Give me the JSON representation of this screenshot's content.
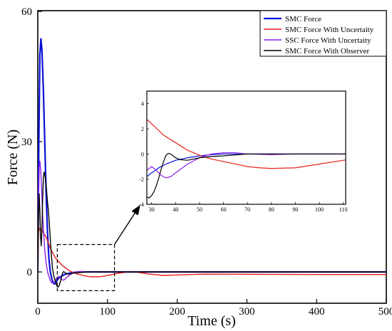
{
  "chart_data": {
    "type": "line",
    "xlabel": "Time (s)",
    "ylabel": "Force (N)",
    "xlim": [
      0,
      500
    ],
    "ylim": [
      -4,
      60
    ],
    "xticks": [
      0,
      100,
      200,
      300,
      400,
      500
    ],
    "yticks": [
      0,
      30,
      60
    ],
    "grid": false,
    "legend_position": "top-right",
    "series": [
      {
        "name": "SMC Force",
        "color": "#0a10d8",
        "x": [
          0,
          1.5,
          3,
          4.5,
          6,
          8,
          10,
          12,
          14,
          16,
          18,
          20,
          22,
          24,
          26,
          28,
          30,
          33,
          36,
          40,
          45,
          50,
          55,
          60,
          70,
          80,
          100,
          150,
          200,
          300,
          400,
          500
        ],
        "y": [
          0,
          30,
          50,
          53.7,
          51,
          42,
          30,
          18,
          9,
          3,
          0,
          -1.5,
          -2.5,
          -2.8,
          -2.5,
          -1.8,
          -1.5,
          -1.1,
          -0.8,
          -0.5,
          -0.3,
          -0.15,
          -0.05,
          0,
          0,
          0,
          0,
          0,
          0,
          0,
          0,
          0
        ]
      },
      {
        "name": "SMC Force With Uncertaity",
        "color": "#e8201a",
        "x": [
          0,
          1,
          2,
          4,
          6,
          8,
          10,
          12,
          14,
          16,
          18,
          20,
          25,
          30,
          35,
          40,
          45,
          50,
          55,
          60,
          65,
          70,
          75,
          80,
          90,
          100,
          110,
          120,
          130,
          140,
          160,
          180,
          200,
          240,
          300,
          400,
          500
        ],
        "y": [
          0,
          9,
          10,
          10,
          9.5,
          9,
          8.5,
          8,
          7.2,
          6.3,
          5.5,
          4.8,
          3.3,
          2.4,
          1.5,
          0.9,
          0.3,
          -0.1,
          -0.4,
          -0.6,
          -0.8,
          -1.0,
          -1.1,
          -1.15,
          -1.1,
          -0.8,
          -0.5,
          -0.2,
          0,
          0,
          -0.5,
          -0.8,
          -0.7,
          -0.5,
          -0.55,
          -0.6,
          -0.6
        ]
      },
      {
        "name": "SSC Force With Uncertaity",
        "color": "#8a1ee6",
        "x": [
          0,
          1,
          2,
          3,
          4,
          5,
          6,
          7,
          8,
          10,
          12,
          14,
          16,
          18,
          20,
          22,
          24,
          26,
          28,
          30,
          32,
          34,
          36,
          38,
          40,
          45,
          50,
          55,
          60,
          65,
          70,
          80,
          90,
          100,
          150,
          200,
          300,
          400,
          500
        ],
        "y": [
          0,
          15,
          24,
          25.5,
          24,
          21,
          17,
          13,
          10,
          5,
          2,
          0,
          -1,
          -2,
          -2.5,
          -2.5,
          -2.3,
          -1.7,
          -1.3,
          -1.0,
          -1.3,
          -1.7,
          -1.9,
          -1.8,
          -1.5,
          -0.8,
          -0.3,
          0,
          0.1,
          0.1,
          0,
          -0.05,
          0,
          0,
          0,
          0,
          0,
          0,
          0
        ]
      },
      {
        "name": "SMC Force With Observer",
        "color": "#000000",
        "x": [
          0,
          1,
          2,
          3,
          4,
          5,
          6,
          7,
          8,
          9,
          10,
          11,
          12,
          13,
          14,
          15,
          16,
          17,
          18,
          19,
          20,
          21,
          22,
          23,
          24,
          25,
          26,
          27,
          28,
          29,
          30,
          31,
          32,
          33,
          34,
          35,
          36,
          37,
          38,
          40,
          42,
          45,
          50,
          55,
          60,
          70,
          100,
          150,
          200,
          300,
          400,
          500
        ],
        "y": [
          0,
          12,
          18,
          14,
          8,
          6,
          10,
          17,
          21.5,
          23,
          22.5,
          21.5,
          20,
          18,
          16,
          14.5,
          12.5,
          10,
          7.5,
          5,
          3,
          1,
          0,
          -1,
          -1.5,
          -2,
          -2.5,
          -3,
          -3.4,
          -3.5,
          -3.3,
          -3.0,
          -2.5,
          -1.9,
          -1.2,
          -0.6,
          -0.1,
          0.05,
          0,
          -0.3,
          -0.45,
          -0.5,
          -0.3,
          -0.2,
          -0.15,
          0,
          0,
          0,
          0,
          0,
          0,
          0
        ]
      }
    ],
    "inset": {
      "xlim": [
        28,
        111
      ],
      "ylim": [
        -4,
        5
      ],
      "xticks": [
        30,
        40,
        50,
        60,
        70,
        80,
        90,
        100,
        110
      ],
      "yticks": [
        -4,
        -2,
        0,
        2,
        4
      ],
      "zoom_region": {
        "x": [
          28,
          110
        ],
        "y": [
          -4,
          5
        ]
      }
    }
  },
  "legend": {
    "items": [
      "SMC Force",
      "SMC Force With Uncertaity",
      "SSC Force With Uncertaity",
      "SMC Force With Observer"
    ]
  }
}
